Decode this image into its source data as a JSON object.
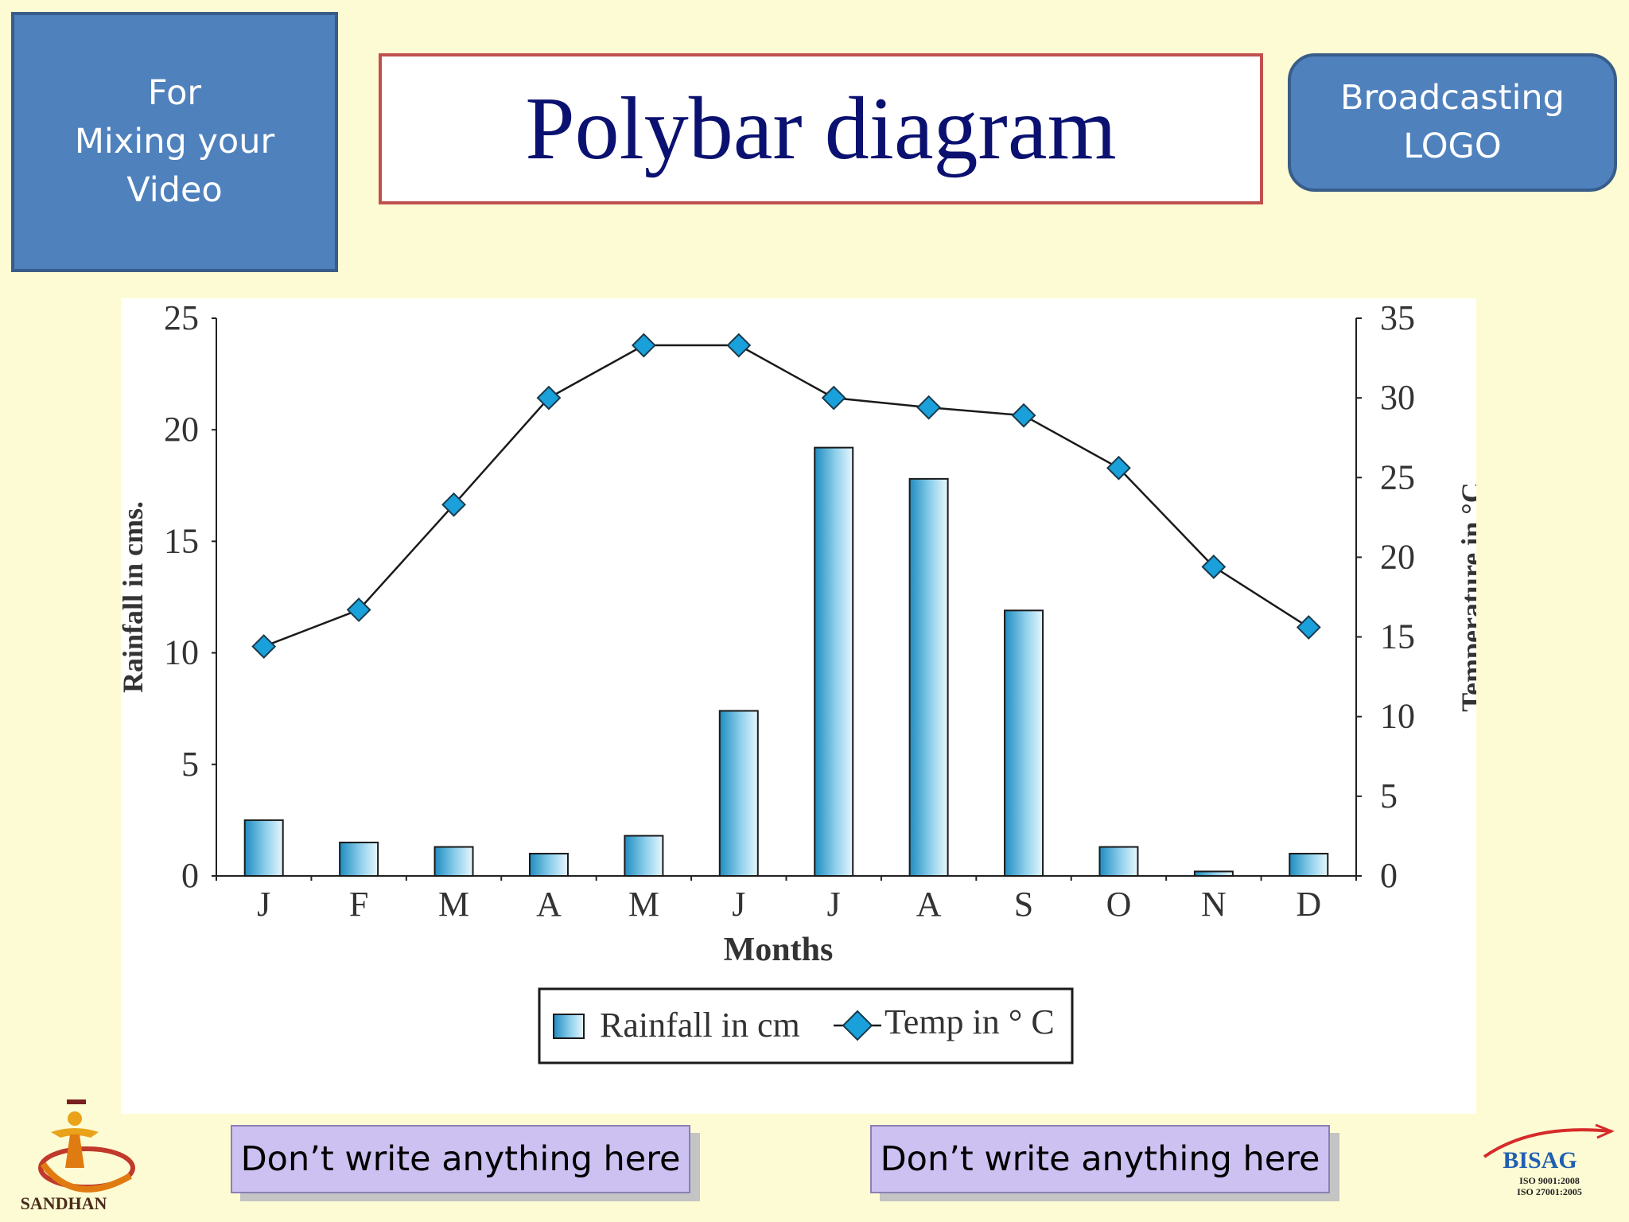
{
  "left_box": {
    "lines": [
      "For",
      "Mixing your",
      "Video"
    ]
  },
  "title": "Polybar diagram",
  "logo_box": {
    "lines": [
      "Broadcasting",
      "LOGO"
    ]
  },
  "notes": [
    "Don’t write anything here",
    "Don’t write anything here"
  ],
  "logos": {
    "left": "SANDHAN",
    "right": "BISAG",
    "right_lines": [
      "ISO  9001:2008",
      "ISO 27001:2005"
    ]
  },
  "colors": {
    "background": "#fdfbd3",
    "accent_blue": "#4f81bd",
    "title_navy": "#0b1170",
    "title_border": "#c0504d",
    "bar": "#2a9fd0",
    "marker": "#1aa0db"
  },
  "chart_data": {
    "type": "bar",
    "categories": [
      "J",
      "F",
      "M",
      "A",
      "M",
      "J",
      "J",
      "A",
      "S",
      "O",
      "N",
      "D"
    ],
    "series": [
      {
        "name": "Rainfall in cm",
        "type": "bar",
        "axis": "left",
        "values": [
          2.5,
          1.5,
          1.3,
          1.0,
          1.8,
          7.4,
          19.2,
          17.8,
          11.9,
          1.3,
          0.2,
          1.0
        ]
      },
      {
        "name": "Temp in ° C",
        "type": "line",
        "axis": "right",
        "values": [
          14.4,
          16.7,
          23.3,
          30.0,
          33.3,
          33.3,
          30.0,
          29.4,
          28.9,
          25.6,
          19.4,
          15.6
        ]
      }
    ],
    "xlabel": "Months",
    "ylabel": "Rainfall in cms.",
    "y2label": "Temperature in °C",
    "ylim": [
      0,
      25
    ],
    "y2lim": [
      0,
      35
    ],
    "yticks": [
      "0",
      "5",
      "10",
      "15",
      "20",
      "25"
    ],
    "y2ticks": [
      "0",
      "5",
      "10",
      "15",
      "20",
      "25",
      "30",
      "35"
    ],
    "legend": {
      "placement": "bottom-center",
      "bar_label": "Rainfall in cm",
      "line_label": "Temp in ° C"
    },
    "grid": false
  }
}
